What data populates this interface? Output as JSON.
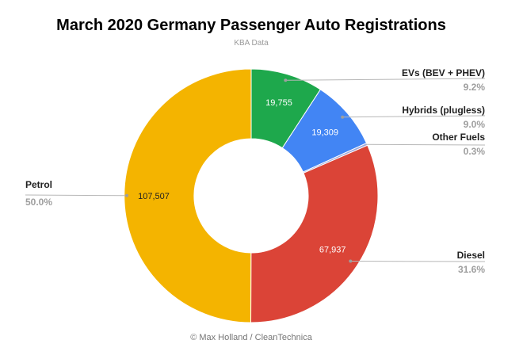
{
  "chart_data": {
    "type": "pie",
    "variant": "donut",
    "title": "March 2020 Germany Passenger Auto Registrations",
    "subtitle": "KBA Data",
    "footer": "© Max Holland / CleanTechnica",
    "legend_position": "none",
    "label_style": "callouts-with-leader-lines",
    "start_angle_deg": 0,
    "direction": "clockwise",
    "slices": [
      {
        "label": "EVs (BEV + PHEV)",
        "pct": 9.2,
        "pct_label": "9.2%",
        "value": 19755,
        "value_label": "19,755",
        "color": "#1EA84C",
        "value_text_color": "#FFFFFF"
      },
      {
        "label": "Hybrids (plugless)",
        "pct": 9.0,
        "pct_label": "9.0%",
        "value": 19309,
        "value_label": "19,309",
        "color": "#4285F4",
        "value_text_color": "#FFFFFF"
      },
      {
        "label": "Other Fuels",
        "pct": 0.3,
        "pct_label": "0.3%",
        "value": null,
        "value_label": "",
        "color": "#9FA8DA",
        "value_text_color": "#FFFFFF"
      },
      {
        "label": "Diesel",
        "pct": 31.6,
        "pct_label": "31.6%",
        "value": 67937,
        "value_label": "67,937",
        "color": "#DB4437",
        "value_text_color": "#FFFFFF"
      },
      {
        "label": "Petrol",
        "pct": 50.0,
        "pct_label": "50.0%",
        "value": 107507,
        "value_label": "107,507",
        "color": "#F4B400",
        "value_text_color": "#212121"
      }
    ],
    "colors": {
      "background": "#FFFFFF",
      "title": "#000000",
      "subtitle": "#999999",
      "callout_label": "#212121",
      "callout_pct": "#9E9E9E",
      "leader_line": "#B7B7B7",
      "leader_dot": "#9E9E9E",
      "slice_border": "#FFFFFF",
      "footer": "#757575"
    }
  }
}
